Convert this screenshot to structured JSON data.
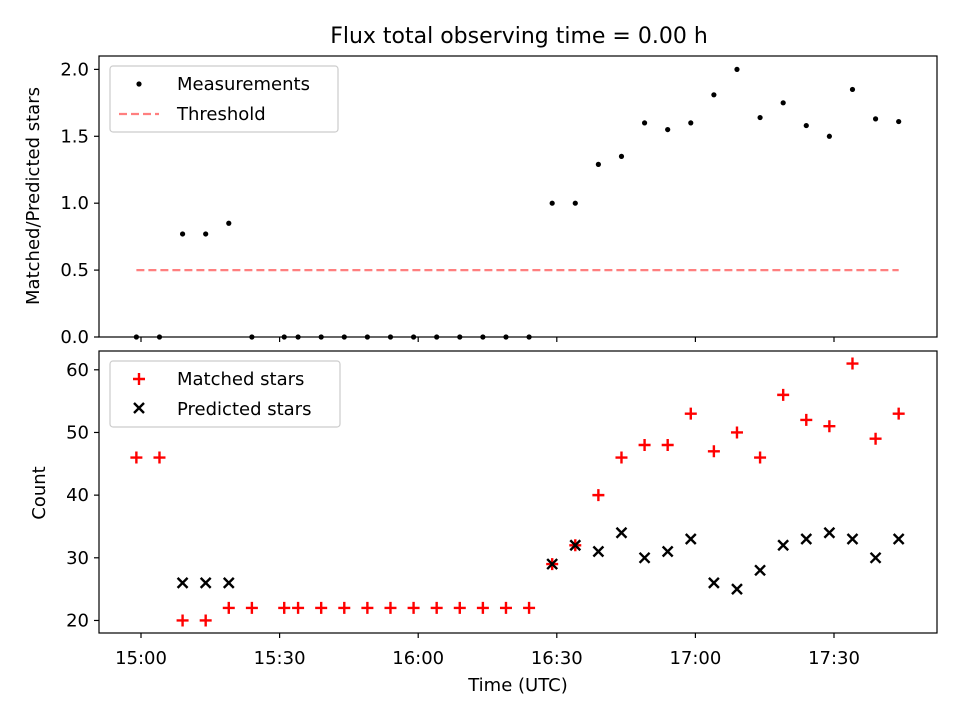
{
  "title": "Flux total observing time = 0.00 h",
  "chart_data": [
    {
      "type": "scatter",
      "ylabel": "Matched/Predicted stars",
      "ylim": [
        0,
        2.1
      ],
      "yticks": [
        0.0,
        0.5,
        1.0,
        1.5,
        2.0
      ],
      "ytick_labels": [
        "0.0",
        "0.5",
        "1.0",
        "1.5",
        "2.0"
      ],
      "grid": false,
      "legend_position": "upper-left",
      "threshold": 0.5,
      "series": [
        {
          "name": "Measurements",
          "marker": "dot",
          "color": "#000000",
          "x": [
            "14:59",
            "15:04",
            "15:09",
            "15:14",
            "15:19",
            "15:24",
            "15:31",
            "15:34",
            "15:39",
            "15:44",
            "15:49",
            "15:54",
            "15:59",
            "16:04",
            "16:09",
            "16:14",
            "16:19",
            "16:24",
            "16:29",
            "16:34",
            "16:39",
            "16:44",
            "16:49",
            "16:54",
            "16:59",
            "17:04",
            "17:09",
            "17:14",
            "17:19",
            "17:24",
            "17:29",
            "17:34",
            "17:39",
            "17:44"
          ],
          "values": [
            0,
            0,
            0.77,
            0.77,
            0.85,
            0,
            0,
            0,
            0,
            0,
            0,
            0,
            0,
            0,
            0,
            0,
            0,
            0,
            1.0,
            1.0,
            1.29,
            1.35,
            1.6,
            1.55,
            1.6,
            1.81,
            2.0,
            1.64,
            1.75,
            1.58,
            1.5,
            1.85,
            1.63,
            1.61
          ]
        },
        {
          "name": "Threshold",
          "style": "dashed",
          "color": "#ff7f7f",
          "x": [
            "14:59",
            "17:44"
          ],
          "values": [
            0.5,
            0.5
          ]
        }
      ]
    },
    {
      "type": "scatter",
      "xlabel": "Time (UTC)",
      "ylabel": "Count",
      "ylim": [
        18,
        63
      ],
      "yticks": [
        20,
        30,
        40,
        50,
        60
      ],
      "xticks": [
        "15:00",
        "15:30",
        "16:00",
        "16:30",
        "17:00",
        "17:30"
      ],
      "grid": false,
      "legend_position": "upper-left",
      "series": [
        {
          "name": "Matched stars",
          "marker": "plus",
          "color": "#ff0000",
          "x": [
            "14:59",
            "15:04",
            "15:09",
            "15:14",
            "15:19",
            "15:24",
            "15:31",
            "15:34",
            "15:39",
            "15:44",
            "15:49",
            "15:54",
            "15:59",
            "16:04",
            "16:09",
            "16:14",
            "16:19",
            "16:24",
            "16:29",
            "16:34",
            "16:39",
            "16:44",
            "16:49",
            "16:54",
            "16:59",
            "17:04",
            "17:09",
            "17:14",
            "17:19",
            "17:24",
            "17:29",
            "17:34",
            "17:39",
            "17:44"
          ],
          "values": [
            46,
            46,
            20,
            20,
            22,
            22,
            22,
            22,
            22,
            22,
            22,
            22,
            22,
            22,
            22,
            22,
            22,
            22,
            29,
            32,
            40,
            46,
            48,
            48,
            53,
            47,
            50,
            46,
            56,
            52,
            51,
            61,
            49,
            53
          ]
        },
        {
          "name": "Predicted stars",
          "marker": "x",
          "color": "#000000",
          "x": [
            "15:09",
            "15:14",
            "15:19",
            "16:29",
            "16:34",
            "16:39",
            "16:44",
            "16:49",
            "16:54",
            "16:59",
            "17:04",
            "17:09",
            "17:14",
            "17:19",
            "17:24",
            "17:29",
            "17:34",
            "17:39",
            "17:44"
          ],
          "values": [
            26,
            26,
            26,
            29,
            32,
            31,
            34,
            30,
            31,
            33,
            26,
            25,
            28,
            32,
            33,
            34,
            33,
            30,
            33
          ]
        }
      ]
    }
  ]
}
